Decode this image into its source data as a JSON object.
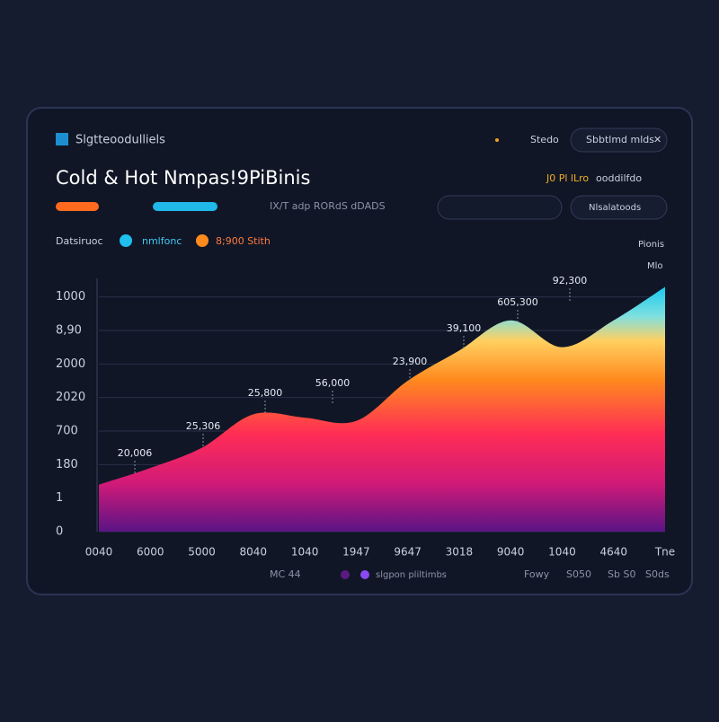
{
  "header": {
    "brand": "Slgtteoodulliels",
    "status": "Stedo",
    "button": "Sbbtlmd mlds"
  },
  "title": "Cold & Hot Nmpas!9PiBinis",
  "subtitle": "IX/T adp  RORdS dDADS",
  "controls": {
    "info": "J0 Pl lLro",
    "info2": "ooddilfdo",
    "select": "Nlsalatoods"
  },
  "legend": {
    "label": "Datsiruoc",
    "items": [
      "nmlfonc",
      "8;900 Stith"
    ]
  },
  "chart_notes": [
    "Pionis",
    "Mlo"
  ],
  "footer": [
    "MC 44",
    "slgpon pliltimbs",
    "Fowy",
    "S050",
    "Sb S0",
    "S0ds"
  ],
  "chart_data": {
    "type": "area",
    "categories": [
      "0040",
      "6000",
      "5000",
      "8040",
      "1040",
      "1947",
      "9647",
      "3018",
      "9040",
      "1040",
      "4640",
      "Tne"
    ],
    "values": [
      1.4,
      1.9,
      2.5,
      3.5,
      3.4,
      3.3,
      4.5,
      5.4,
      6.3,
      5.5,
      6.3,
      7.3
    ],
    "ylim": [
      0,
      7.5
    ],
    "yticks": [
      {
        "value": 0,
        "label": "0"
      },
      {
        "value": 1,
        "label": "1"
      },
      {
        "value": 2,
        "label": "180"
      },
      {
        "value": 3,
        "label": "700"
      },
      {
        "value": 4,
        "label": "2020"
      },
      {
        "value": 5,
        "label": "2000"
      },
      {
        "value": 6,
        "label": "8,90"
      },
      {
        "value": 7,
        "label": "1000"
      }
    ],
    "grid": true,
    "annotations": [
      "20,006",
      "25,306",
      "25,800",
      "56,000",
      "23,900",
      "39,100",
      "605,300",
      "92,300"
    ]
  }
}
